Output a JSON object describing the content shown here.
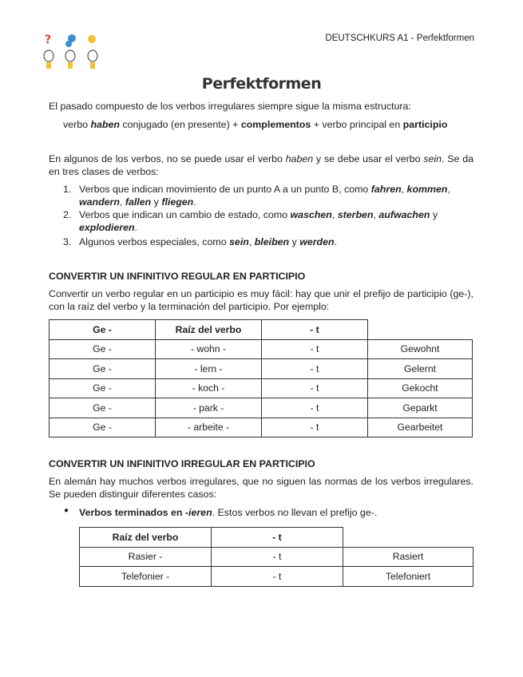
{
  "header": {
    "running_title": "DEUTSCHKURS A1 - Perfektformen"
  },
  "title": "Perfektformen",
  "intro": {
    "text": "El pasado compuesto de los verbos irregulares siempre sigue la misma estructura:",
    "formula": {
      "a": "verbo ",
      "b": "haben",
      "c": " conjugado (en presente) + ",
      "d": "complementos",
      "e": " + verbo principal en ",
      "f": "participio"
    }
  },
  "sein_para": {
    "a": "En algunos de los verbos, no se puede usar el verbo ",
    "b": "haben",
    "c": " y se debe usar el verbo ",
    "d": "sein",
    "e": ". Se da en tres clases de verbos:"
  },
  "list": [
    {
      "n": "1.",
      "a": "Verbos que indican movimiento de un punto A a un punto B, como ",
      "b": "fahren",
      "c": ", ",
      "d": "kommen",
      "e": ", ",
      "f": "wandern",
      "g": ", ",
      "h": "fallen",
      "i": " y ",
      "j": "fliegen",
      "k": "."
    },
    {
      "n": "2.",
      "a": "Verbos que indican un cambio de estado, como ",
      "b": "waschen",
      "c": ", ",
      "d": "sterben",
      "e": ", ",
      "f": "aufwachen",
      "g": " y ",
      "h": "explodieren",
      "i": ".",
      "j": "",
      "k": ""
    },
    {
      "n": "3.",
      "a": "Algunos verbos especiales, como ",
      "b": "sein",
      "c": ", ",
      "d": "bleiben",
      "e": " y ",
      "f": "werden",
      "g": ".",
      "h": "",
      "i": "",
      "j": "",
      "k": ""
    }
  ],
  "section1": {
    "heading": "CONVERTIR UN INFINITIVO REGULAR EN PARTICIPIO",
    "text": "Convertir un verbo regular en un participio es muy fácil: hay que unir el prefijo de participio (ge-), con la raíz del verbo y la terminación del participio. Por ejemplo:",
    "table": {
      "headers": [
        "Ge -",
        "Raíz del verbo",
        "- t"
      ],
      "rows": [
        [
          "Ge -",
          "- wohn -",
          "- t",
          "Gewohnt"
        ],
        [
          "Ge -",
          "- lern -",
          "- t",
          "Gelernt"
        ],
        [
          "Ge -",
          "- koch -",
          "- t",
          "Gekocht"
        ],
        [
          "Ge -",
          "- park -",
          "- t",
          "Geparkt"
        ],
        [
          "Ge -",
          "- arbeite -",
          "- t",
          "Gearbeitet"
        ]
      ]
    }
  },
  "section2": {
    "heading": "CONVERTIR UN INFINITIVO IRREGULAR EN PARTICIPIO",
    "text": "En alemán hay muchos verbos irregulares, que no siguen las normas de los verbos irregulares. Se pueden distinguir diferentes casos:",
    "bullet": {
      "a": "Verbos terminados en -",
      "b": "ieren",
      "c": ". Estos verbos no llevan el prefijo ge-."
    },
    "table": {
      "headers": [
        "Raíz del verbo",
        "- t"
      ],
      "rows": [
        [
          "Rasier -",
          "- t",
          "Rasiert"
        ],
        [
          "Telefonier -",
          "- t",
          "Telefoniert"
        ]
      ]
    }
  }
}
